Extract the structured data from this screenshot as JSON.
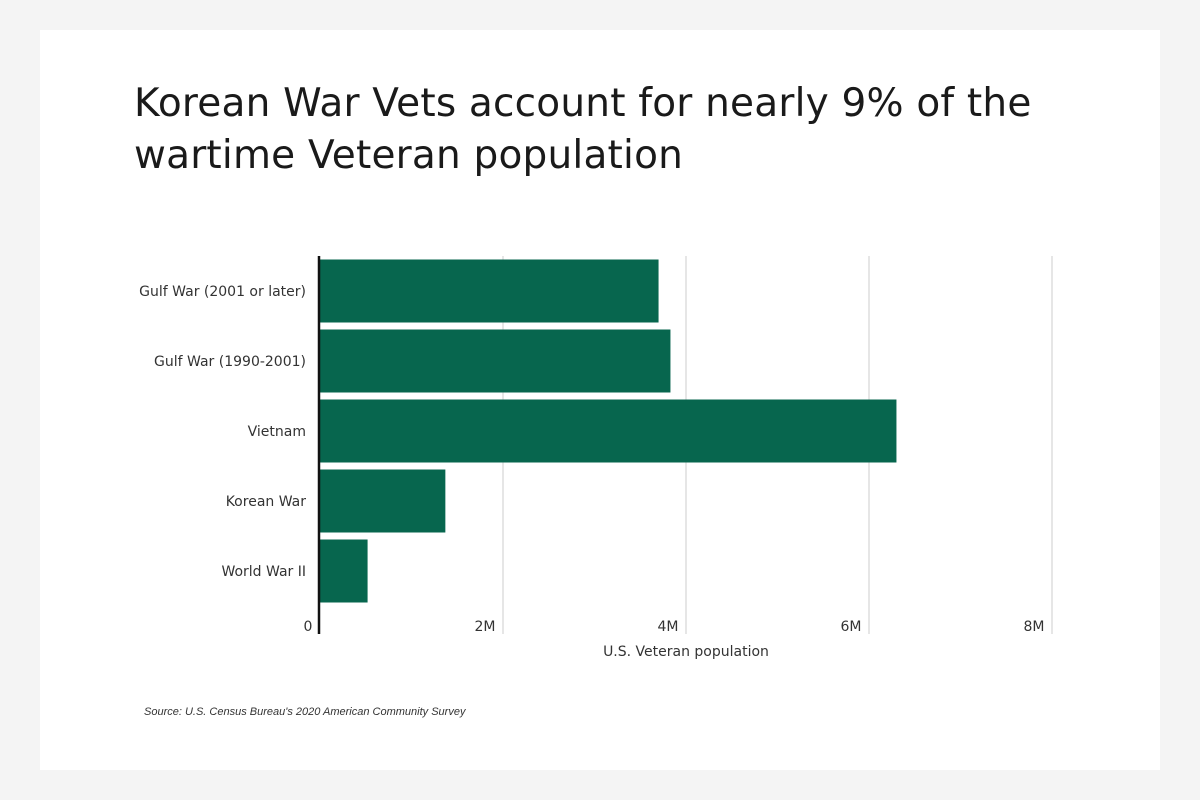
{
  "title": "Korean War Vets account for nearly 9% of the wartime Veteran population",
  "source": "Source:  U.S. Census Bureau's 2020 American Community Survey",
  "chart_data": {
    "type": "bar",
    "orientation": "horizontal",
    "title": "Korean War Vets account for nearly 9% of the wartime Veteran population",
    "categories": [
      "Gulf War (2001 or later)",
      "Gulf War (1990-2001)",
      "Vietnam",
      "Korean War",
      "World War II"
    ],
    "values": [
      3700000,
      3830000,
      6300000,
      1370000,
      520000
    ],
    "xlabel": "U.S. Veteran population",
    "ylabel": "",
    "xlim": [
      0,
      8000000
    ],
    "ticks": [
      {
        "value": 0,
        "label": "0"
      },
      {
        "value": 2000000,
        "label": "2M"
      },
      {
        "value": 4000000,
        "label": "4M"
      },
      {
        "value": 6000000,
        "label": "6M"
      },
      {
        "value": 8000000,
        "label": "8M"
      }
    ],
    "grid": true,
    "legend": "none",
    "bar_color": "#07664e",
    "grid_color": "#d6d6d6",
    "axis_color": "#111111"
  }
}
